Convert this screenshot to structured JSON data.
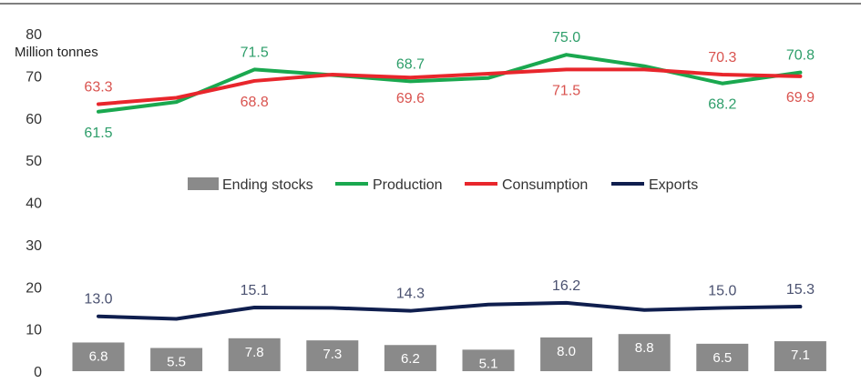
{
  "chart_data": {
    "type": "line",
    "ylabel": "Million tonnes",
    "ylim": [
      0,
      80
    ],
    "yticks": [
      0,
      10,
      20,
      30,
      40,
      50,
      60,
      70,
      80
    ],
    "grid": false,
    "legend_position": "center",
    "colors": {
      "ending_stocks": "#8a8a8a",
      "production": "#1aa84f",
      "consumption": "#e8262c",
      "exports": "#0f1e4e",
      "production_label": "#2e9e6a",
      "consumption_label": "#d9534f",
      "exports_label": "#4a5170"
    },
    "series": [
      {
        "key": "ending_stocks",
        "name": "Ending stocks",
        "kind": "bar",
        "values": [
          6.8,
          5.5,
          7.8,
          7.3,
          6.2,
          5.1,
          8.0,
          8.8,
          6.5,
          7.1
        ],
        "labels": [
          "6.8",
          "5.5",
          "7.8",
          "7.3",
          "6.2",
          "5.1",
          "8.0",
          "8.8",
          "6.5",
          "7.1"
        ]
      },
      {
        "key": "production",
        "name": "Production",
        "kind": "line",
        "values": [
          61.5,
          63.8,
          71.5,
          70.2,
          68.7,
          69.5,
          75.0,
          72.3,
          68.2,
          70.8
        ],
        "labels": [
          "61.5",
          "",
          "71.5",
          "",
          "68.7",
          "",
          "75.0",
          "",
          "68.2",
          "70.8"
        ],
        "label_side": [
          "below",
          "",
          "above",
          "",
          "above",
          "",
          "above",
          "",
          "below",
          "above"
        ]
      },
      {
        "key": "consumption",
        "name": "Consumption",
        "kind": "line",
        "values": [
          63.3,
          64.8,
          68.8,
          70.3,
          69.6,
          70.5,
          71.5,
          71.5,
          70.3,
          69.9
        ],
        "labels": [
          "63.3",
          "",
          "68.8",
          "",
          "69.6",
          "",
          "71.5",
          "",
          "70.3",
          "69.9"
        ],
        "label_side": [
          "above",
          "",
          "below",
          "",
          "below",
          "",
          "below",
          "",
          "above",
          "below"
        ]
      },
      {
        "key": "exports",
        "name": "Exports",
        "kind": "line",
        "values": [
          13.0,
          12.4,
          15.1,
          15.0,
          14.3,
          15.8,
          16.2,
          14.5,
          15.0,
          15.3
        ],
        "labels": [
          "13.0",
          "",
          "15.1",
          "",
          "14.3",
          "",
          "16.2",
          "",
          "15.0",
          "15.3"
        ],
        "label_side": [
          "above",
          "",
          "above",
          "",
          "above",
          "",
          "above",
          "",
          "above",
          "above"
        ]
      }
    ]
  }
}
